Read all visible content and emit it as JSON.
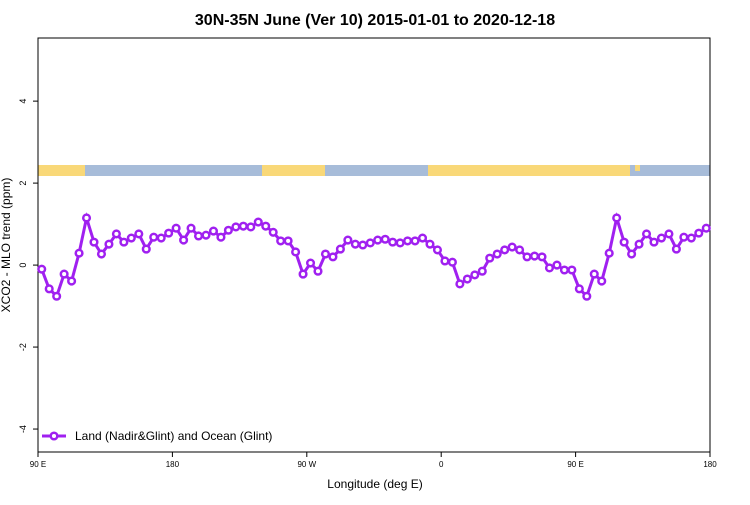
{
  "chart_data": {
    "type": "line",
    "title": "30N-35N June (Ver 10)   2015-01-01 to 2020-12-18",
    "x_label": "Longitude (deg E)",
    "y_label": "XCO2 - MLO trend (ppm)",
    "x": [
      92.5,
      97.5,
      102.5,
      107.5,
      112.5,
      117.5,
      122.5,
      127.5,
      132.5,
      137.5,
      142.5,
      147.5,
      152.5,
      157.5,
      162.5,
      167.5,
      172.5,
      177.5,
      182.5,
      187.5,
      192.5,
      197.5,
      202.5,
      207.5,
      212.5,
      217.5,
      222.5,
      227.5,
      232.5,
      237.5,
      242.5,
      247.5,
      252.5,
      257.5,
      262.5,
      267.5,
      272.5,
      277.5,
      282.5,
      287.5,
      292.5,
      297.5,
      302.5,
      307.5,
      312.5,
      317.5,
      322.5,
      327.5,
      332.5,
      337.5,
      342.5,
      347.5,
      352.5,
      357.5,
      362.5,
      367.5,
      372.5,
      377.5,
      382.5,
      387.5,
      392.5,
      397.5,
      402.5,
      407.5,
      412.5,
      417.5,
      422.5,
      427.5,
      432.5,
      437.5,
      442.5,
      447.5,
      452.5,
      457.5,
      462.5,
      467.5,
      472.5,
      477.5,
      482.5,
      487.5,
      492.5,
      497.5,
      502.5,
      507.5,
      512.5,
      517.5,
      522.5,
      527.5,
      532.5,
      537.5
    ],
    "series": [
      {
        "name": "Land (Nadir&Glint) and Ocean (Glint)",
        "color": "#a020f0",
        "values": [
          -0.1,
          -0.58,
          -0.76,
          -0.22,
          -0.39,
          0.29,
          1.15,
          0.56,
          0.27,
          0.51,
          0.76,
          0.56,
          0.66,
          0.76,
          0.39,
          0.68,
          0.66,
          0.78,
          0.9,
          0.61,
          0.9,
          0.71,
          0.73,
          0.83,
          0.68,
          0.85,
          0.93,
          0.95,
          0.93,
          1.05,
          0.95,
          0.8,
          0.59,
          0.59,
          0.32,
          -0.22,
          0.05,
          -0.15,
          0.27,
          0.2,
          0.39,
          0.61,
          0.51,
          0.49,
          0.54,
          0.61,
          0.63,
          0.56,
          0.54,
          0.59,
          0.59,
          0.66,
          0.51,
          0.37,
          0.1,
          0.07,
          -0.46,
          -0.34,
          -0.24,
          -0.15,
          0.17,
          0.27,
          0.37,
          0.44,
          0.37,
          0.2,
          0.22,
          0.2,
          -0.07,
          0,
          -0.12,
          -0.12,
          -0.58,
          -0.76,
          -0.22,
          -0.39,
          0.29,
          1.15,
          0.56,
          0.27,
          0.51,
          0.76,
          0.56,
          0.66,
          0.76,
          0.39,
          0.68,
          0.66,
          0.78,
          0.9
        ]
      }
    ],
    "xlim": [
      90,
      540
    ],
    "ylim": [
      -4.56,
      5.54
    ],
    "xticks": [
      {
        "value": 90,
        "label": "90 E"
      },
      180,
      {
        "value": 270,
        "label": "90 W"
      },
      0,
      {
        "value": 450,
        "label": "90 E"
      },
      {
        "value": 540,
        "label": "180"
      }
    ],
    "yticks": [
      -4,
      -2,
      0,
      2,
      4
    ],
    "legend": "bottom-left"
  }
}
